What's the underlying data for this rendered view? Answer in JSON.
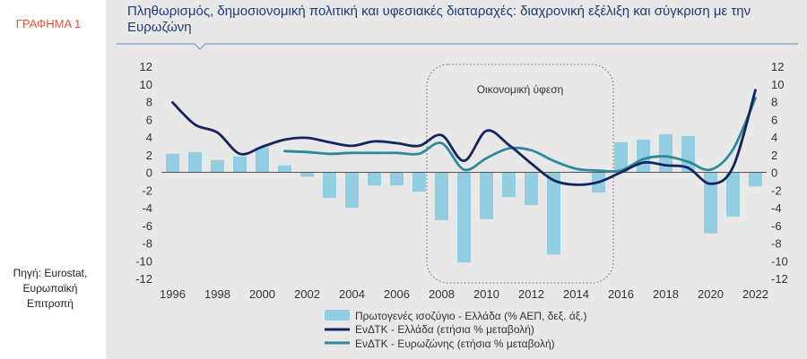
{
  "figure_label": "ΓΡΑΦΗΜΑ 1",
  "source_lines": [
    "Πηγή: Eurostat,",
    "Ευρωπαϊκή",
    "Επιτροπή"
  ],
  "colors": {
    "bar": "#93cde2",
    "greece_line": "#13255e",
    "eurozone_line": "#2e8a99",
    "title": "#1e3a78",
    "label_red": "#e0533b"
  },
  "chart_data": {
    "type": "bar+line",
    "title": "Πληθωρισμός, δημοσιονομική πολιτική και υφεσιακές διαταραχές: διαχρονική εξέλιξη και σύγκριση με την Ευρωζώνη",
    "ylim": [
      -12,
      12
    ],
    "yticks": [
      12,
      10,
      8,
      6,
      4,
      2,
      0,
      -2,
      -4,
      -6,
      -8,
      -10,
      -12
    ],
    "xticks": [
      1996,
      1998,
      2000,
      2002,
      2004,
      2006,
      2008,
      2010,
      2012,
      2014,
      2016,
      2018,
      2020,
      2022
    ],
    "xlim": [
      1995.5,
      2022.5
    ],
    "annotation": {
      "text": "Οικονομική ύφεση",
      "x_start": 2007.5,
      "x_end": 2015.5
    },
    "bars": {
      "name": "Πρωτογενές ισοζύγιο - Ελλάδα (% ΑΕΠ, δεξ. άξ.)",
      "x": [
        1996,
        1997,
        1998,
        1999,
        2000,
        2001,
        2002,
        2003,
        2004,
        2005,
        2006,
        2007,
        2008,
        2009,
        2010,
        2011,
        2012,
        2013,
        2014,
        2015,
        2016,
        2017,
        2018,
        2019,
        2020,
        2021,
        2022
      ],
      "values": [
        2.1,
        2.3,
        1.4,
        1.8,
        2.8,
        0.8,
        -0.5,
        -2.9,
        -4.0,
        -1.5,
        -1.5,
        -2.2,
        -5.4,
        -10.2,
        -5.3,
        -2.8,
        -3.7,
        -9.3,
        0.1,
        -2.3,
        3.4,
        3.7,
        4.3,
        4.1,
        -6.9,
        -5.0,
        -1.6
      ]
    },
    "series": [
      {
        "name": "ΕνΔΤΚ - Ελλάδα (ετήσια % μεταβολή)",
        "x": [
          1996,
          1997,
          1998,
          1999,
          2000,
          2001,
          2002,
          2003,
          2004,
          2005,
          2006,
          2007,
          2008,
          2009,
          2010,
          2011,
          2012,
          2013,
          2014,
          2015,
          2016,
          2017,
          2018,
          2019,
          2020,
          2021,
          2022
        ],
        "values": [
          7.9,
          5.4,
          4.5,
          2.1,
          2.9,
          3.7,
          3.9,
          3.4,
          3.0,
          3.5,
          3.3,
          3.0,
          4.2,
          1.3,
          4.7,
          3.1,
          1.0,
          -0.9,
          -1.4,
          -1.1,
          0.0,
          1.1,
          0.8,
          0.5,
          -1.3,
          0.6,
          9.3
        ]
      },
      {
        "name": "ΕνΔΤΚ - Ευρωζώνης (ετήσια % μεταβολή)",
        "x": [
          2001,
          2002,
          2003,
          2004,
          2005,
          2006,
          2007,
          2008,
          2009,
          2010,
          2011,
          2012,
          2013,
          2014,
          2015,
          2016,
          2017,
          2018,
          2019,
          2020,
          2021,
          2022
        ],
        "values": [
          2.4,
          2.3,
          2.1,
          2.2,
          2.2,
          2.2,
          2.1,
          3.3,
          0.3,
          1.6,
          2.7,
          2.5,
          1.3,
          0.4,
          0.2,
          0.2,
          1.5,
          1.8,
          1.2,
          0.3,
          2.6,
          8.4
        ]
      }
    ]
  }
}
